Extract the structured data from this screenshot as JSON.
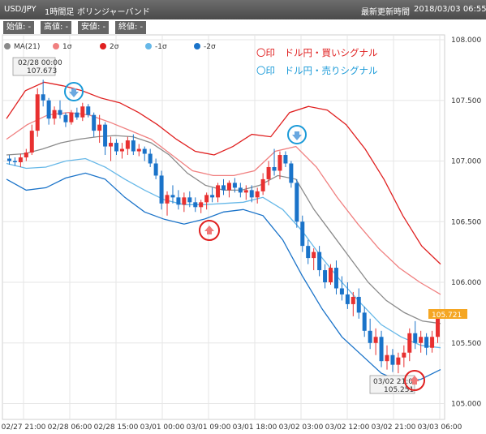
{
  "header": {
    "pair": "USD/JPY",
    "timeframe": "1時間足",
    "indicator": "ボリンジャーバンド",
    "updated_label": "最新更新時間",
    "updated_value": "2018/03/03 06:55"
  },
  "ohlc": {
    "open_label": "始値: -",
    "high_label": "高値: -",
    "low_label": "安値: -",
    "close_label": "終値: -"
  },
  "legend": [
    {
      "name": "MA(21)",
      "color": "#8a8a8a"
    },
    {
      "name": "1σ",
      "color": "#f08080"
    },
    {
      "name": "2σ",
      "color": "#e02020"
    },
    {
      "name": "-1σ",
      "color": "#66b8e8"
    },
    {
      "name": "-2σ",
      "color": "#1a73c9"
    }
  ],
  "signals": {
    "buy": "〇印　ドル円・買いシグナル",
    "sell": "〇印　ドル円・売りシグナル",
    "buy_color": "#e02020",
    "sell_color": "#1a9ad8"
  },
  "tooltips": {
    "high": {
      "time": "02/28 00:00",
      "value": "107.673"
    },
    "low": {
      "time": "03/02 21:00",
      "value": "105.251"
    }
  },
  "current_price": "105.721",
  "chart_data": {
    "type": "candlestick",
    "ylim": [
      104.9,
      108.1
    ],
    "y_ticks": [
      "108.000",
      "107.500",
      "107.000",
      "106.500",
      "106.000",
      "105.500",
      "105.000"
    ],
    "x_ticks": [
      "02/27 21:00",
      "02/28 06:00",
      "02/28 15:00",
      "03/01 00:00",
      "03/01 09:00",
      "03/01 18:00",
      "03/02 03:00",
      "03/02 12:00",
      "03/02 21:00",
      "03/03 06:00"
    ],
    "candles": [
      [
        107.02,
        107.05,
        106.97,
        107.0
      ],
      [
        107.0,
        107.03,
        106.96,
        106.99
      ],
      [
        106.99,
        107.06,
        106.95,
        107.03
      ],
      [
        107.03,
        107.1,
        107.0,
        107.07
      ],
      [
        107.07,
        107.3,
        107.05,
        107.25
      ],
      [
        107.25,
        107.6,
        107.2,
        107.55
      ],
      [
        107.55,
        107.67,
        107.45,
        107.5
      ],
      [
        107.5,
        107.52,
        107.3,
        107.35
      ],
      [
        107.35,
        107.45,
        107.3,
        107.42
      ],
      [
        107.42,
        107.5,
        107.35,
        107.38
      ],
      [
        107.38,
        107.4,
        107.28,
        107.32
      ],
      [
        107.32,
        107.42,
        107.3,
        107.4
      ],
      [
        107.4,
        107.44,
        107.34,
        107.36
      ],
      [
        107.36,
        107.48,
        107.33,
        107.45
      ],
      [
        107.45,
        107.47,
        107.36,
        107.38
      ],
      [
        107.38,
        107.4,
        107.2,
        107.25
      ],
      [
        107.25,
        107.38,
        107.15,
        107.3
      ],
      [
        107.3,
        107.32,
        107.05,
        107.12
      ],
      [
        107.12,
        107.2,
        107.0,
        107.15
      ],
      [
        107.15,
        107.18,
        107.05,
        107.08
      ],
      [
        107.08,
        107.15,
        107.02,
        107.1
      ],
      [
        107.1,
        107.2,
        107.05,
        107.17
      ],
      [
        107.17,
        107.22,
        107.05,
        107.08
      ],
      [
        107.08,
        107.14,
        107.04,
        107.1
      ],
      [
        107.1,
        107.12,
        107.0,
        107.06
      ],
      [
        107.06,
        107.1,
        106.95,
        106.98
      ],
      [
        106.98,
        107.02,
        106.85,
        106.88
      ],
      [
        106.88,
        106.92,
        106.6,
        106.65
      ],
      [
        106.65,
        106.75,
        106.55,
        106.72
      ],
      [
        106.72,
        106.8,
        106.65,
        106.7
      ],
      [
        106.7,
        106.76,
        106.6,
        106.64
      ],
      [
        106.64,
        106.74,
        106.58,
        106.7
      ],
      [
        106.7,
        106.75,
        106.62,
        106.66
      ],
      [
        106.66,
        106.7,
        106.58,
        106.62
      ],
      [
        106.62,
        106.68,
        106.57,
        106.66
      ],
      [
        106.66,
        106.74,
        106.6,
        106.72
      ],
      [
        106.72,
        106.78,
        106.66,
        106.7
      ],
      [
        106.7,
        106.82,
        106.66,
        106.8
      ],
      [
        106.8,
        106.85,
        106.72,
        106.76
      ],
      [
        106.76,
        106.84,
        106.7,
        106.82
      ],
      [
        106.82,
        106.86,
        106.74,
        106.78
      ],
      [
        106.78,
        106.82,
        106.7,
        106.74
      ],
      [
        106.74,
        106.8,
        106.68,
        106.76
      ],
      [
        106.76,
        106.8,
        106.66,
        106.7
      ],
      [
        106.7,
        106.78,
        106.65,
        106.75
      ],
      [
        106.75,
        106.9,
        106.72,
        106.85
      ],
      [
        106.85,
        107.0,
        106.8,
        106.95
      ],
      [
        106.95,
        107.1,
        106.88,
        106.92
      ],
      [
        106.92,
        107.08,
        106.85,
        107.05
      ],
      [
        107.05,
        107.08,
        106.95,
        106.98
      ],
      [
        106.98,
        107.0,
        106.78,
        106.82
      ],
      [
        106.82,
        106.85,
        106.45,
        106.5
      ],
      [
        106.5,
        106.55,
        106.25,
        106.3
      ],
      [
        106.3,
        106.35,
        106.15,
        106.2
      ],
      [
        106.2,
        106.28,
        106.1,
        106.25
      ],
      [
        106.25,
        106.3,
        106.05,
        106.1
      ],
      [
        106.1,
        106.15,
        105.95,
        106.0
      ],
      [
        106.0,
        106.15,
        105.98,
        106.12
      ],
      [
        106.12,
        106.18,
        105.9,
        105.95
      ],
      [
        105.95,
        106.05,
        105.85,
        105.9
      ],
      [
        105.9,
        106.0,
        105.78,
        105.82
      ],
      [
        105.82,
        105.92,
        105.72,
        105.88
      ],
      [
        105.88,
        105.95,
        105.7,
        105.75
      ],
      [
        105.75,
        105.8,
        105.55,
        105.6
      ],
      [
        105.6,
        105.7,
        105.45,
        105.5
      ],
      [
        105.5,
        105.62,
        105.4,
        105.55
      ],
      [
        105.55,
        105.6,
        105.3,
        105.35
      ],
      [
        105.35,
        105.48,
        105.28,
        105.4
      ],
      [
        105.4,
        105.45,
        105.26,
        105.32
      ],
      [
        105.32,
        105.42,
        105.25,
        105.38
      ],
      [
        105.38,
        105.48,
        105.3,
        105.42
      ],
      [
        105.42,
        105.62,
        105.35,
        105.58
      ],
      [
        105.58,
        105.68,
        105.45,
        105.5
      ],
      [
        105.5,
        105.6,
        105.42,
        105.55
      ],
      [
        105.55,
        105.58,
        105.4,
        105.46
      ],
      [
        105.46,
        105.6,
        105.42,
        105.55
      ],
      [
        105.55,
        105.74,
        105.5,
        105.72
      ]
    ],
    "ma21": [
      107.05,
      107.06,
      107.1,
      107.15,
      107.18,
      107.2,
      107.21,
      107.2,
      107.15,
      107.05,
      106.9,
      106.8,
      106.76,
      106.76,
      106.8,
      106.88,
      106.85,
      106.6,
      106.4,
      106.2,
      106.0,
      105.85,
      105.75,
      105.68,
      105.66
    ],
    "band_1sigma": [
      107.18,
      107.3,
      107.38,
      107.4,
      107.38,
      107.32,
      107.25,
      107.18,
      107.05,
      106.92,
      106.88,
      106.88,
      106.92,
      107.08,
      107.12,
      106.95,
      106.7,
      106.48,
      106.28,
      106.12,
      106.0,
      105.9
    ],
    "band_2sigma": [
      107.35,
      107.58,
      107.65,
      107.62,
      107.58,
      107.52,
      107.48,
      107.4,
      107.3,
      107.18,
      107.08,
      107.05,
      107.12,
      107.22,
      107.2,
      107.4,
      107.45,
      107.42,
      107.3,
      107.1,
      106.85,
      106.55,
      106.3,
      106.15
    ],
    "band_minus_1sigma": [
      106.98,
      106.94,
      106.95,
      107.0,
      107.02,
      106.95,
      106.85,
      106.76,
      106.68,
      106.64,
      106.64,
      106.65,
      106.66,
      106.7,
      106.6,
      106.42,
      106.2,
      106.0,
      105.82,
      105.65,
      105.55,
      105.48,
      105.46
    ],
    "band_minus_2sigma": [
      106.85,
      106.76,
      106.78,
      106.86,
      106.9,
      106.85,
      106.7,
      106.58,
      106.52,
      106.48,
      106.52,
      106.58,
      106.6,
      106.55,
      106.35,
      106.05,
      105.78,
      105.55,
      105.4,
      105.25,
      105.18,
      105.2,
      105.28
    ]
  }
}
